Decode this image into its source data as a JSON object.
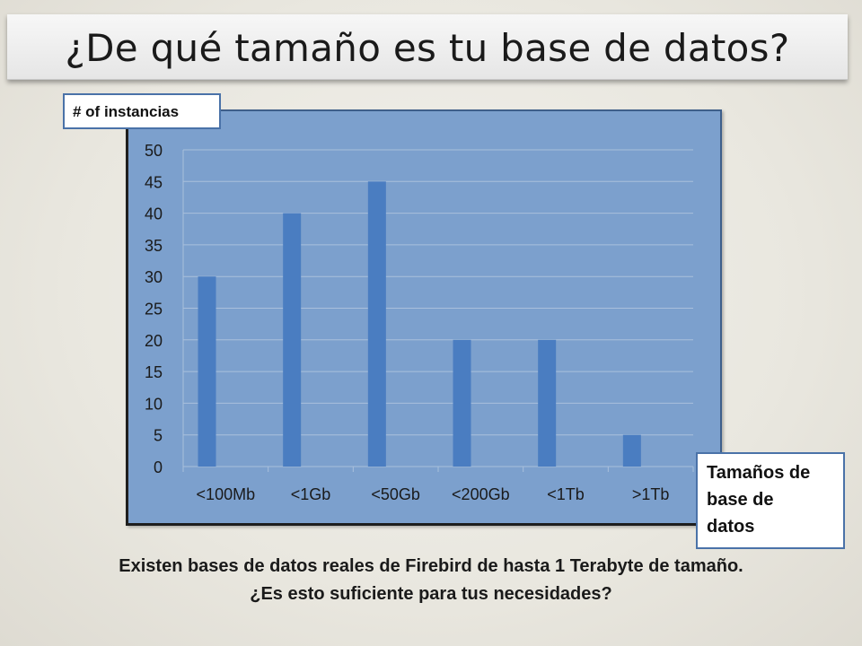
{
  "slide": {
    "title": "¿De qué tamaño es tu base de datos?",
    "caption_line1": "Existen bases de datos reales de Firebird de hasta 1 Terabyte de tamaño.",
    "caption_line2": "¿Es esto suficiente para tus necesidades?"
  },
  "colors": {
    "plot_area": "#7ca0cd",
    "bar": "#4a7dc1",
    "gridline": "#a9bfdc",
    "label_border": "#4a72a8"
  },
  "chart_data": {
    "type": "bar",
    "categories": [
      "<100Mb",
      "<1Gb",
      "<50Gb",
      "<200Gb",
      "<1Tb",
      ">1Tb"
    ],
    "values": [
      30,
      40,
      45,
      20,
      20,
      5
    ],
    "ylabel": "# of instancias",
    "xlabel": "Tamaños de base de datos",
    "xlabel_lines": [
      "Tamaños de",
      "base de",
      "datos"
    ],
    "ylim": [
      0,
      50
    ],
    "yticks": [
      0,
      5,
      10,
      15,
      20,
      25,
      30,
      35,
      40,
      45,
      50
    ],
    "grid": true,
    "legend": "none"
  }
}
